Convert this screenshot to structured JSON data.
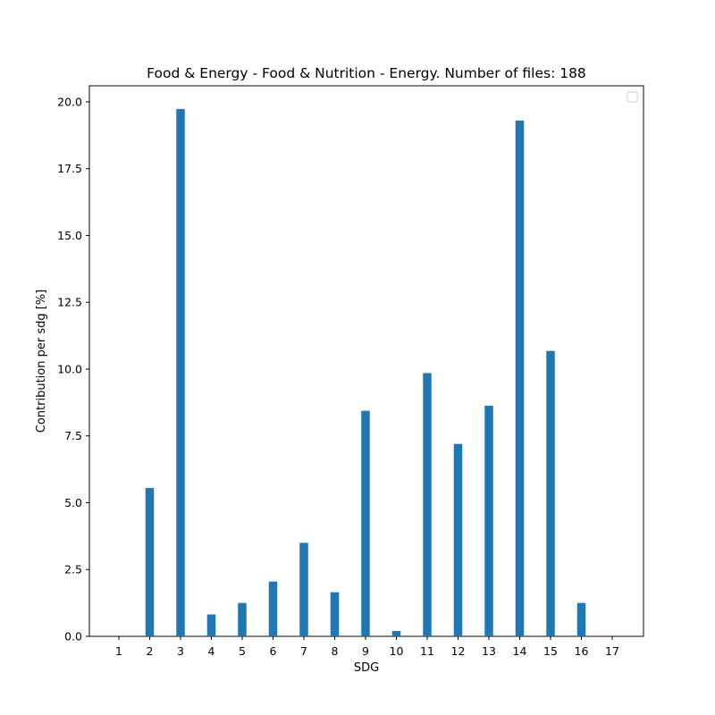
{
  "chart_data": {
    "type": "bar",
    "title": "Food & Energy - Food & Nutrition - Energy. Number of files: 188",
    "xlabel": "SDG",
    "ylabel": "Contribution per sdg [%]",
    "categories": [
      "1",
      "2",
      "3",
      "4",
      "5",
      "6",
      "7",
      "8",
      "9",
      "10",
      "11",
      "12",
      "13",
      "14",
      "15",
      "16",
      "17"
    ],
    "values": [
      0.0,
      5.55,
      19.73,
      0.82,
      1.25,
      2.05,
      3.5,
      1.65,
      8.44,
      0.2,
      9.85,
      7.2,
      8.63,
      19.3,
      10.68,
      1.25,
      0.0
    ],
    "yticks": [
      "0.0",
      "2.5",
      "5.0",
      "7.5",
      "10.0",
      "12.5",
      "15.0",
      "17.5",
      "20.0"
    ],
    "ylim": [
      0,
      20.6
    ],
    "grid": false,
    "legend": "top-right, empty",
    "bar_color": "#1f77b4"
  }
}
